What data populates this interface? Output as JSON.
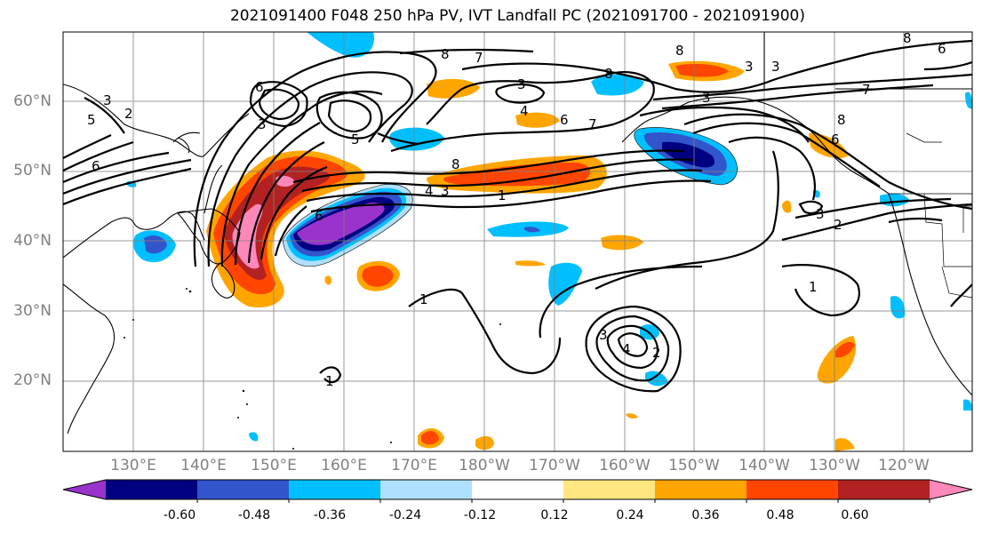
{
  "title": "2021091400 F048 250 hPa PV, IVT Landfall PC (2021091700 - 2021091900)",
  "lat_labels": [
    "60°N",
    "50°N",
    "40°N",
    "30°N",
    "20°N"
  ],
  "lon_labels": [
    "130°E",
    "140°E",
    "150°E",
    "160°E",
    "170°E",
    "180°W",
    "170°W",
    "160°W",
    "150°W",
    "140°W",
    "130°W",
    "120°W"
  ],
  "colorbar": {
    "ticks": [
      "-0.60",
      "-0.48",
      "-0.36",
      "-0.24",
      "-0.12",
      "0.12",
      "0.24",
      "0.36",
      "0.48",
      "0.60"
    ],
    "colors": [
      "#9933cc",
      "#000080",
      "#3355cc",
      "#00bfff",
      "#b0e0ff",
      "#ffffff",
      "#ffe680",
      "#ffa500",
      "#ff4500",
      "#b22222",
      "#ff88bb"
    ]
  },
  "contour_labels": [
    "1",
    "2",
    "3",
    "4",
    "5",
    "6",
    "7",
    "8"
  ],
  "palette": {
    "land_line": "#000000",
    "grid": "#808080",
    "contour": "#000000"
  }
}
